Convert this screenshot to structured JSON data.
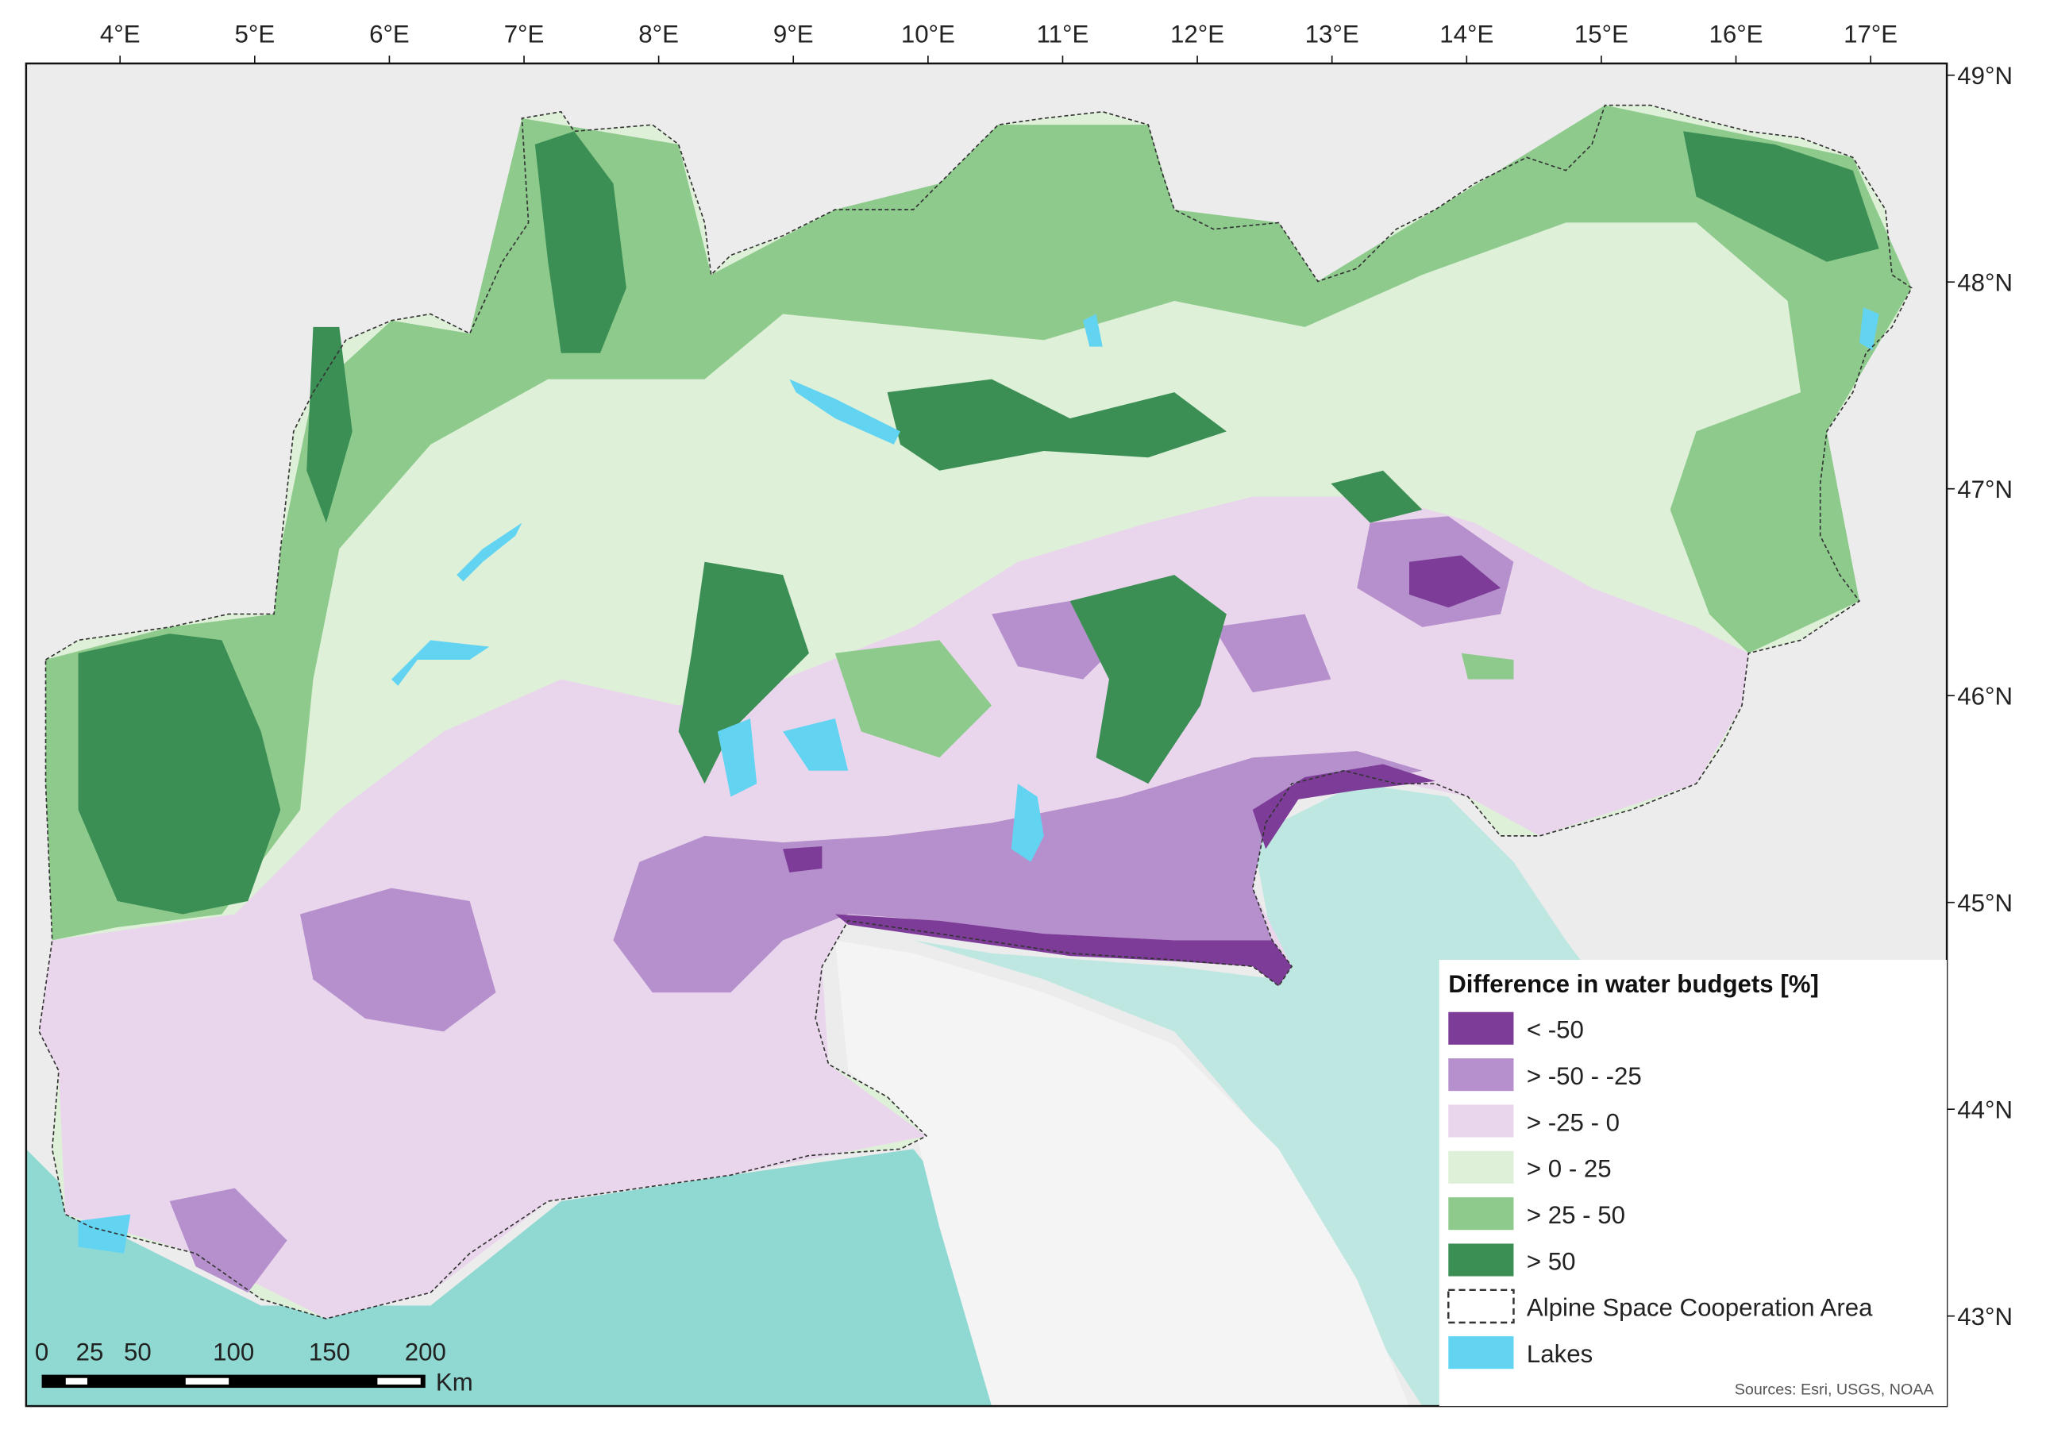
{
  "map": {
    "longitude_labels": [
      "4°E",
      "5°E",
      "6°E",
      "7°E",
      "8°E",
      "9°E",
      "10°E",
      "11°E",
      "12°E",
      "13°E",
      "14°E",
      "15°E",
      "16°E",
      "17°E"
    ],
    "latitude_labels": [
      "49°N",
      "48°N",
      "47°N",
      "46°N",
      "45°N",
      "44°N",
      "43°N"
    ],
    "legend": {
      "title": "Difference in water budgets [%]",
      "items": [
        {
          "label": "< -50",
          "color": "#7d3c98"
        },
        {
          "label": "> -50 - -25",
          "color": "#b590cc"
        },
        {
          "label": "> -25 - 0",
          "color": "#ead6ec"
        },
        {
          "label": "> 0 - 25",
          "color": "#def0d8"
        },
        {
          "label": "> 25 - 50",
          "color": "#8dca8c"
        },
        {
          "label": "> 50",
          "color": "#3b8f55"
        },
        {
          "label": "Alpine Space Cooperation Area",
          "color": "none",
          "border": "dashed"
        },
        {
          "label": "Lakes",
          "color": "#62d4f2"
        }
      ]
    },
    "scale_bar": {
      "ticks": [
        0,
        25,
        50,
        100,
        150,
        200
      ],
      "unit": "Km"
    },
    "sources": "Sources: Esri, USGS, NOAA"
  }
}
